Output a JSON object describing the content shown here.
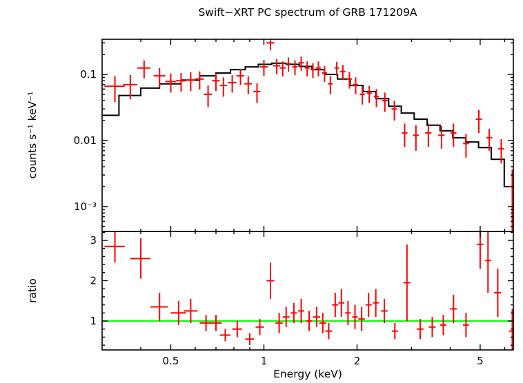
{
  "title": "Swift−XRT PC spectrum of GRB 171209A",
  "axes": {
    "x_label": "Energy (keV)",
    "y_label_top": "counts s⁻¹ keV⁻¹",
    "y_label_bottom": "ratio"
  },
  "chart_data": [
    {
      "type": "scatter",
      "panel": "spectrum",
      "title": "Swift−XRT PC spectrum of GRB 171209A",
      "ylabel": "counts s⁻¹ keV⁻¹",
      "xscale": "log",
      "yscale": "log",
      "xlim": [
        0.3,
        6.4
      ],
      "ylim": [
        0.00042,
        0.34
      ],
      "grid": false,
      "point_color": "#ff0000",
      "model_color": "#000000",
      "x_major_ticks": [
        0.5,
        1,
        2,
        5
      ],
      "x_tick_labels": [
        "0.5",
        "1",
        "2",
        "5"
      ],
      "x_minor_ticks": [
        0.4,
        0.6,
        0.7,
        0.8,
        0.9,
        3,
        4,
        6
      ],
      "y_major_ticks": [
        0.001,
        0.01,
        0.1
      ],
      "y_tick_labels": [
        "10⁻³",
        "0.01",
        "0.1"
      ],
      "y_minor_ticks": [
        0.0005,
        0.0006,
        0.0007,
        0.0008,
        0.0009,
        0.002,
        0.003,
        0.004,
        0.005,
        0.006,
        0.007,
        0.008,
        0.009,
        0.02,
        0.03,
        0.04,
        0.05,
        0.06,
        0.07,
        0.08,
        0.09,
        0.2,
        0.3
      ],
      "points": [
        [
          0.33,
          0.066,
          0.025,
          0.028
        ],
        [
          0.37,
          0.07,
          0.02,
          0.028
        ],
        [
          0.41,
          0.125,
          0.02,
          0.038
        ],
        [
          0.46,
          0.095,
          0.02,
          0.03
        ],
        [
          0.5,
          0.078,
          0.02,
          0.025
        ],
        [
          0.54,
          0.08,
          0.02,
          0.025
        ],
        [
          0.58,
          0.082,
          0.02,
          0.026
        ],
        [
          0.62,
          0.085,
          0.02,
          0.026
        ],
        [
          0.66,
          0.05,
          0.02,
          0.018
        ],
        [
          0.7,
          0.08,
          0.02,
          0.024
        ],
        [
          0.74,
          0.068,
          0.02,
          0.022
        ],
        [
          0.79,
          0.075,
          0.025,
          0.022
        ],
        [
          0.84,
          0.095,
          0.025,
          0.026
        ],
        [
          0.89,
          0.072,
          0.025,
          0.022
        ],
        [
          0.95,
          0.055,
          0.025,
          0.018
        ],
        [
          1.0,
          0.13,
          0.03,
          0.035
        ],
        [
          1.05,
          0.3,
          0.03,
          0.07
        ],
        [
          1.1,
          0.135,
          0.03,
          0.035
        ],
        [
          1.15,
          0.125,
          0.025,
          0.032
        ],
        [
          1.2,
          0.145,
          0.025,
          0.035
        ],
        [
          1.26,
          0.13,
          0.025,
          0.033
        ],
        [
          1.32,
          0.15,
          0.025,
          0.036
        ],
        [
          1.38,
          0.125,
          0.025,
          0.032
        ],
        [
          1.44,
          0.118,
          0.025,
          0.03
        ],
        [
          1.5,
          0.125,
          0.03,
          0.032
        ],
        [
          1.57,
          0.105,
          0.03,
          0.028
        ],
        [
          1.64,
          0.072,
          0.03,
          0.022
        ],
        [
          1.72,
          0.125,
          0.03,
          0.03
        ],
        [
          1.8,
          0.11,
          0.035,
          0.028
        ],
        [
          1.89,
          0.085,
          0.035,
          0.024
        ],
        [
          1.98,
          0.07,
          0.035,
          0.02
        ],
        [
          2.08,
          0.05,
          0.04,
          0.015
        ],
        [
          2.19,
          0.052,
          0.04,
          0.015
        ],
        [
          2.31,
          0.046,
          0.045,
          0.014
        ],
        [
          2.46,
          0.04,
          0.05,
          0.013
        ],
        [
          2.64,
          0.03,
          0.055,
          0.01
        ],
        [
          2.85,
          0.013,
          0.06,
          0.005
        ],
        [
          3.1,
          0.012,
          0.07,
          0.005
        ],
        [
          3.4,
          0.013,
          0.08,
          0.005
        ],
        [
          3.75,
          0.012,
          0.09,
          0.0045
        ],
        [
          4.1,
          0.013,
          0.09,
          0.005
        ],
        [
          4.5,
          0.009,
          0.1,
          0.0035
        ],
        [
          4.95,
          0.021,
          0.11,
          0.008
        ],
        [
          5.35,
          0.011,
          0.12,
          0.004
        ],
        [
          5.85,
          0.0075,
          0.13,
          0.003
        ],
        [
          6.35,
          0.002,
          0.15,
          0.0016
        ]
      ],
      "model_steps": [
        [
          0.3,
          0.34,
          0.024
        ],
        [
          0.34,
          0.4,
          0.048
        ],
        [
          0.4,
          0.46,
          0.062
        ],
        [
          0.46,
          0.54,
          0.072
        ],
        [
          0.54,
          0.62,
          0.082
        ],
        [
          0.62,
          0.7,
          0.095
        ],
        [
          0.7,
          0.78,
          0.105
        ],
        [
          0.78,
          0.87,
          0.118
        ],
        [
          0.87,
          0.96,
          0.13
        ],
        [
          0.96,
          1.06,
          0.142
        ],
        [
          1.06,
          1.18,
          0.148
        ],
        [
          1.18,
          1.3,
          0.142
        ],
        [
          1.3,
          1.43,
          0.132
        ],
        [
          1.43,
          1.57,
          0.118
        ],
        [
          1.57,
          1.73,
          0.1
        ],
        [
          1.73,
          1.9,
          0.085
        ],
        [
          1.9,
          2.09,
          0.068
        ],
        [
          2.09,
          2.3,
          0.055
        ],
        [
          2.3,
          2.53,
          0.043
        ],
        [
          2.53,
          2.78,
          0.033
        ],
        [
          2.78,
          3.06,
          0.026
        ],
        [
          3.06,
          3.37,
          0.021
        ],
        [
          3.37,
          3.71,
          0.017
        ],
        [
          3.71,
          4.08,
          0.014
        ],
        [
          4.08,
          4.49,
          0.011
        ],
        [
          4.49,
          4.94,
          0.0095
        ],
        [
          4.94,
          5.43,
          0.0078
        ],
        [
          5.43,
          5.98,
          0.0052
        ],
        [
          5.98,
          6.4,
          0.002
        ]
      ]
    },
    {
      "type": "scatter",
      "panel": "ratio",
      "ylabel": "ratio",
      "xscale": "log",
      "yscale": "linear",
      "xlim": [
        0.3,
        6.4
      ],
      "ylim": [
        0.282,
        3.222
      ],
      "grid": false,
      "point_color": "#ff0000",
      "reference_line": {
        "y": 1,
        "color": "#00ff00"
      },
      "y_major_ticks": [
        1,
        2,
        3
      ],
      "y_tick_labels": [
        "1",
        "2",
        "3"
      ],
      "y_minor_ticks": [
        0.4,
        0.6,
        0.8,
        1.2,
        1.4,
        1.6,
        1.8,
        2.2,
        2.4,
        2.6,
        2.8,
        3.2
      ],
      "points": [
        [
          0.33,
          2.85,
          0.025,
          0.4
        ],
        [
          0.4,
          2.55,
          0.03,
          0.5
        ],
        [
          0.46,
          1.35,
          0.03,
          0.35
        ],
        [
          0.53,
          1.2,
          0.03,
          0.3
        ],
        [
          0.58,
          1.25,
          0.03,
          0.3
        ],
        [
          0.65,
          0.95,
          0.03,
          0.2
        ],
        [
          0.7,
          0.95,
          0.03,
          0.2
        ],
        [
          0.75,
          0.65,
          0.03,
          0.15
        ],
        [
          0.82,
          0.8,
          0.03,
          0.2
        ],
        [
          0.9,
          0.55,
          0.03,
          0.15
        ],
        [
          0.97,
          0.85,
          0.03,
          0.2
        ],
        [
          1.05,
          2.0,
          0.03,
          0.45
        ],
        [
          1.12,
          0.95,
          0.03,
          0.25
        ],
        [
          1.18,
          1.1,
          0.03,
          0.25
        ],
        [
          1.25,
          1.2,
          0.03,
          0.25
        ],
        [
          1.32,
          1.25,
          0.03,
          0.3
        ],
        [
          1.4,
          1.0,
          0.03,
          0.25
        ],
        [
          1.48,
          1.1,
          0.04,
          0.25
        ],
        [
          1.55,
          0.95,
          0.04,
          0.25
        ],
        [
          1.62,
          0.75,
          0.04,
          0.2
        ],
        [
          1.7,
          1.4,
          0.04,
          0.3
        ],
        [
          1.78,
          1.45,
          0.04,
          0.35
        ],
        [
          1.87,
          1.2,
          0.04,
          0.3
        ],
        [
          1.97,
          1.1,
          0.04,
          0.3
        ],
        [
          2.07,
          1.05,
          0.05,
          0.3
        ],
        [
          2.18,
          1.4,
          0.05,
          0.3
        ],
        [
          2.3,
          1.45,
          0.05,
          0.35
        ],
        [
          2.45,
          1.25,
          0.06,
          0.3
        ],
        [
          2.65,
          0.75,
          0.06,
          0.2
        ],
        [
          2.9,
          1.95,
          0.08,
          0.95
        ],
        [
          3.2,
          0.8,
          0.08,
          0.25
        ],
        [
          3.5,
          0.85,
          0.09,
          0.25
        ],
        [
          3.8,
          0.9,
          0.09,
          0.25
        ],
        [
          4.1,
          1.3,
          0.1,
          0.35
        ],
        [
          4.5,
          0.9,
          0.1,
          0.3
        ],
        [
          5.0,
          2.9,
          0.12,
          0.6
        ],
        [
          5.3,
          2.5,
          0.12,
          0.8
        ],
        [
          5.7,
          1.7,
          0.15,
          0.6
        ],
        [
          6.35,
          0.75,
          0.15,
          0.55
        ]
      ]
    }
  ]
}
